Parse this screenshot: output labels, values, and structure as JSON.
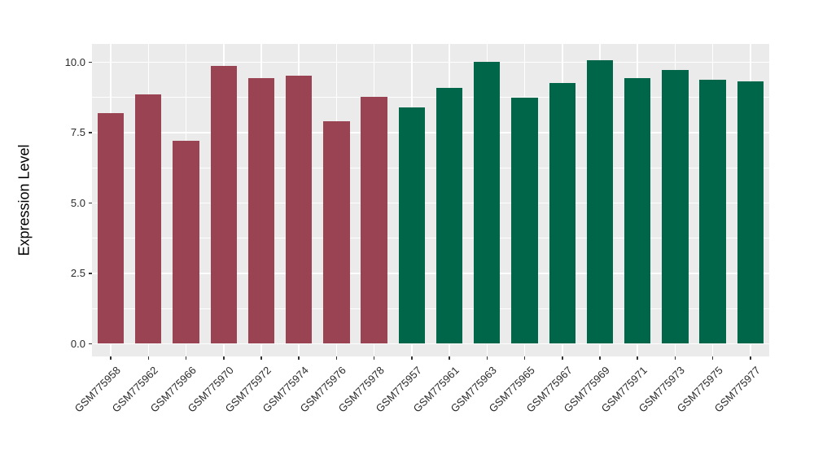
{
  "chart_data": {
    "type": "bar",
    "title": "",
    "xlabel": "",
    "ylabel": "Expression Level",
    "ylim": [
      -0.45,
      10.65
    ],
    "yticks": [
      {
        "value": 0.0,
        "label": "0.0"
      },
      {
        "value": 2.5,
        "label": "2.5"
      },
      {
        "value": 5.0,
        "label": "5.0"
      },
      {
        "value": 7.5,
        "label": "7.5"
      },
      {
        "value": 10.0,
        "label": "10.0"
      }
    ],
    "minor_yticks": [
      1.25,
      3.75,
      6.25,
      8.75
    ],
    "grid": "major and minor horizontal white lines, vertical white line at each category, grey panel background",
    "legend": false,
    "categories": [
      "GSM775958",
      "GSM775962",
      "GSM775966",
      "GSM775970",
      "GSM775972",
      "GSM775974",
      "GSM775976",
      "GSM775978",
      "GSM775957",
      "GSM775961",
      "GSM775963",
      "GSM775965",
      "GSM775967",
      "GSM775969",
      "GSM775971",
      "GSM775973",
      "GSM775975",
      "GSM775977"
    ],
    "values": [
      8.18,
      8.85,
      7.21,
      9.87,
      9.44,
      9.51,
      7.91,
      8.78,
      8.39,
      9.1,
      10.0,
      8.73,
      9.25,
      10.06,
      9.45,
      9.72,
      9.39,
      9.33
    ],
    "groups": [
      "A",
      "A",
      "A",
      "A",
      "A",
      "A",
      "A",
      "A",
      "B",
      "B",
      "B",
      "B",
      "B",
      "B",
      "B",
      "B",
      "B",
      "B"
    ],
    "group_colors": {
      "A": "#9A4352",
      "B": "#00664A"
    },
    "panel_bg": "#EBEBEB",
    "grid_color": "#FFFFFF",
    "tick_color": "#333333",
    "text_color": "#2b2b2b"
  }
}
